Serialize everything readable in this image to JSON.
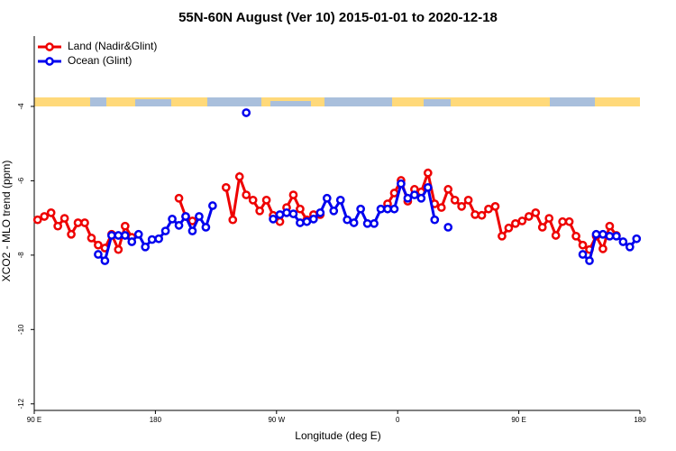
{
  "chart_data": {
    "type": "line",
    "title": "55N-60N August (Ver 10)   2015-01-01 to 2020-12-18",
    "xlabel": "Longitude (deg E)",
    "ylabel": "XCO2 - MLO trend (ppm)",
    "xlim": [
      90,
      540
    ],
    "xticks": [
      {
        "value": 90,
        "label": "90 E"
      },
      {
        "value": 180,
        "label": "180"
      },
      {
        "value": 270,
        "label": "90 W"
      },
      {
        "value": 360,
        "label": "0"
      },
      {
        "value": 450,
        "label": "90 E"
      },
      {
        "value": 540,
        "label": "180"
      }
    ],
    "ylim": [
      -12.2,
      -2.2
    ],
    "yticks": [
      -4,
      -6,
      -8,
      -10,
      -12
    ],
    "legend": "top-left",
    "x": [
      92.5,
      97.5,
      102.5,
      107.5,
      112.5,
      117.5,
      122.5,
      127.5,
      132.5,
      137.5,
      142.5,
      147.5,
      152.5,
      157.5,
      162.5,
      167.5,
      172.5,
      177.5,
      182.5,
      187.5,
      192.5,
      197.5,
      202.5,
      207.5,
      212.5,
      217.5,
      222.5,
      227.5,
      232.5,
      237.5,
      242.5,
      247.5,
      252.5,
      257.5,
      262.5,
      267.5,
      272.5,
      277.5,
      282.5,
      287.5,
      292.5,
      297.5,
      302.5,
      307.5,
      312.5,
      317.5,
      322.5,
      327.5,
      332.5,
      337.5,
      342.5,
      347.5,
      352.5,
      357.5,
      362.5,
      367.5,
      372.5,
      377.5,
      382.5,
      387.5,
      392.5,
      397.5,
      402.5,
      407.5,
      412.5,
      417.5,
      422.5,
      427.5,
      432.5,
      437.5,
      442.5,
      447.5,
      452.5,
      457.5,
      462.5,
      467.5,
      472.5,
      477.5,
      482.5,
      487.5,
      492.5,
      497.5,
      502.5,
      507.5,
      512.5,
      517.5,
      522.5,
      527.5,
      532.5,
      537.5
    ],
    "series": [
      {
        "name": "Land (Nadir&Glint)",
        "color": "#ee0000",
        "values": [
          -7.05,
          -6.96,
          -6.86,
          -7.22,
          -7.01,
          -7.44,
          -7.13,
          -7.13,
          -7.54,
          -7.73,
          -7.81,
          -7.44,
          -7.85,
          -7.22,
          -7.52,
          null,
          null,
          null,
          null,
          null,
          null,
          -6.47,
          -6.96,
          -7.08,
          null,
          null,
          null,
          null,
          -6.18,
          -7.05,
          -5.89,
          -6.38,
          -6.52,
          -6.81,
          -6.52,
          -6.93,
          -7.1,
          -6.72,
          -6.38,
          -6.76,
          -7.05,
          -6.91,
          -6.91,
          null,
          null,
          null,
          null,
          null,
          null,
          null,
          null,
          null,
          -6.62,
          -6.33,
          -5.99,
          -6.55,
          -6.23,
          -6.3,
          -5.79,
          -6.62,
          -6.72,
          -6.23,
          -6.52,
          -6.69,
          -6.52,
          -6.91,
          -6.93,
          -6.76,
          -6.69,
          -7.49,
          -7.27,
          -7.15,
          -7.08,
          -6.96,
          -6.86,
          -7.25,
          -7.01,
          -7.47,
          -7.1,
          -7.1,
          -7.49,
          -7.73,
          -7.85,
          -7.49,
          -7.83,
          -7.22,
          -7.47,
          null,
          null,
          null
        ]
      },
      {
        "name": "Ocean (Glint)",
        "color": "#0000ee",
        "values": [
          null,
          null,
          null,
          null,
          null,
          null,
          null,
          null,
          null,
          -7.98,
          -8.15,
          -7.47,
          -7.47,
          -7.47,
          -7.64,
          -7.44,
          -7.78,
          -7.58,
          -7.56,
          -7.35,
          -7.03,
          -7.2,
          -6.96,
          -7.35,
          -6.96,
          -7.25,
          -6.67,
          null,
          null,
          null,
          null,
          -4.17,
          null,
          null,
          null,
          -7.03,
          -6.91,
          -6.86,
          -6.89,
          -7.13,
          -7.1,
          -7.03,
          -6.86,
          -6.47,
          -6.81,
          -6.52,
          -7.05,
          -7.13,
          -6.76,
          -7.15,
          -7.15,
          -6.76,
          -6.76,
          -6.76,
          -6.08,
          -6.47,
          -6.38,
          -6.47,
          -6.18,
          -7.05,
          null,
          -7.25,
          null,
          null,
          null,
          null,
          null,
          null,
          null,
          null,
          null,
          null,
          null,
          null,
          null,
          null,
          null,
          null,
          null,
          null,
          null,
          -7.98,
          -8.15,
          -7.44,
          -7.44,
          -7.49,
          -7.49,
          -7.64,
          -7.78,
          -7.56
        ]
      }
    ]
  }
}
